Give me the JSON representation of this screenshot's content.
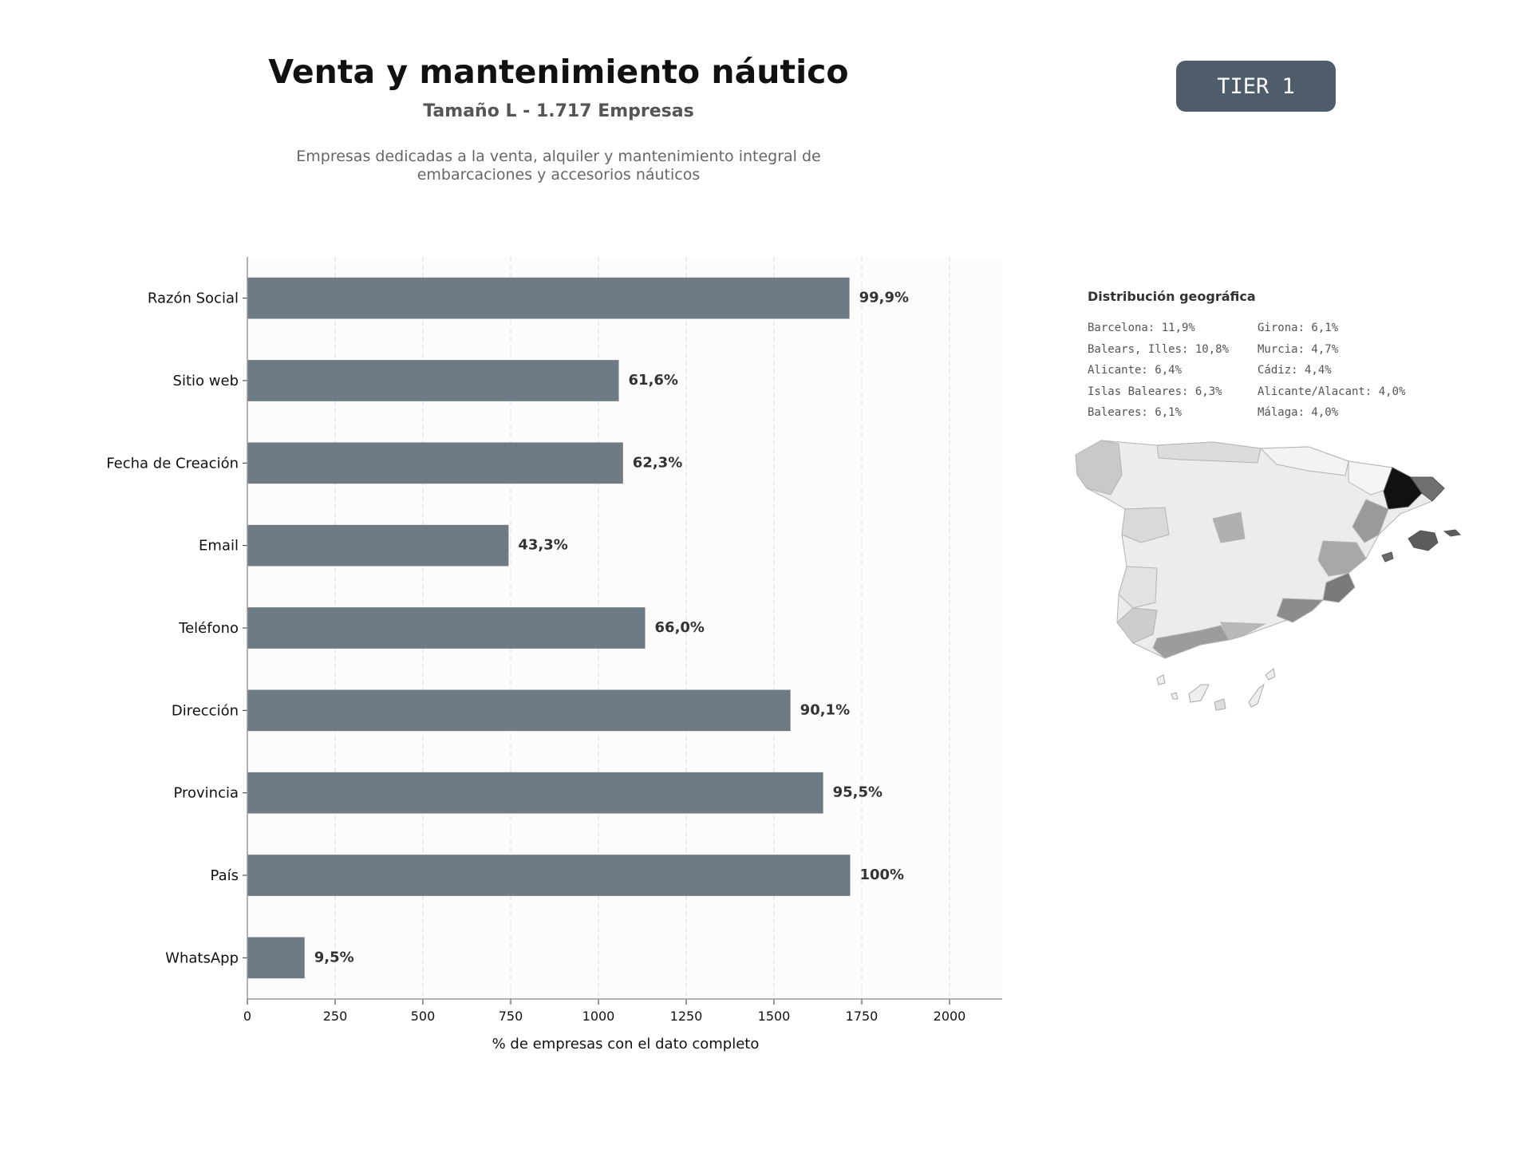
{
  "header": {
    "title": "Venta y mantenimiento náutico",
    "subtitle": "Tamaño L - 1.717 Empresas",
    "description": "Empresas dedicadas a la venta, alquiler y mantenimiento integral de embarcaciones y accesorios náuticos",
    "tier": "TIER 1"
  },
  "chart_data": {
    "type": "bar",
    "orientation": "horizontal",
    "categories": [
      "Razón Social",
      "Sitio web",
      "Fecha de Creación",
      "Email",
      "Teléfono",
      "Dirección",
      "Provincia",
      "País",
      "WhatsApp"
    ],
    "values": [
      1715,
      1058,
      1070,
      744,
      1133,
      1547,
      1640,
      1717,
      163
    ],
    "data_labels": [
      "99,9%",
      "61,6%",
      "62,3%",
      "43,3%",
      "66,0%",
      "90,1%",
      "95,5%",
      "100%",
      "9,5%"
    ],
    "xlabel": "% de empresas con el dato completo",
    "xlim": [
      0,
      2150
    ],
    "xticks": [
      0,
      250,
      500,
      750,
      1000,
      1250,
      1500,
      1750,
      2000
    ],
    "grid": "vertical dashed",
    "bar_color": "#6e7a84"
  },
  "geo": {
    "title": "Distribución geográfica",
    "entries": [
      "Barcelona: 11,9%",
      "Balears, Illes: 10,8%",
      "Alicante: 6,4%",
      "Islas Baleares: 6,3%",
      "Baleares: 6,1%",
      "Girona: 6,1%",
      "Murcia: 4,7%",
      "Cádiz: 4,4%",
      "Alicante/Alacant: 4,0%",
      "Málaga: 4,0%"
    ]
  }
}
